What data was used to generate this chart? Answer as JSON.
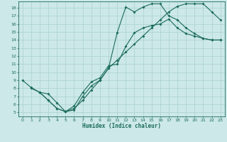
{
  "xlabel": "Humidex (Indice chaleur)",
  "bg_color": "#cce8e8",
  "grid_color": "#aad0d0",
  "line_color": "#1a6b5a",
  "xlim": [
    -0.5,
    23.5
  ],
  "ylim": [
    4.5,
    18.8
  ],
  "xticks": [
    0,
    1,
    2,
    3,
    4,
    5,
    6,
    7,
    8,
    9,
    10,
    11,
    12,
    13,
    14,
    15,
    16,
    17,
    18,
    19,
    20,
    21,
    22,
    23
  ],
  "yticks": [
    5,
    6,
    7,
    8,
    9,
    10,
    11,
    12,
    13,
    14,
    15,
    16,
    17,
    18
  ],
  "line1_x": [
    0,
    1,
    2,
    3,
    4,
    5,
    6,
    7,
    8,
    9,
    10,
    11,
    12,
    13,
    14,
    15,
    16,
    17,
    18,
    19,
    20,
    21,
    22,
    23
  ],
  "line1_y": [
    9.0,
    8.1,
    7.5,
    7.3,
    6.2,
    5.1,
    5.8,
    7.5,
    8.8,
    9.3,
    10.8,
    11.0,
    13.2,
    14.9,
    15.5,
    15.8,
    16.0,
    16.6,
    15.5,
    14.8,
    14.5,
    14.2,
    14.0,
    14.0
  ],
  "line2_x": [
    1,
    2,
    3,
    4,
    5,
    6,
    7,
    8,
    9,
    10,
    11,
    12,
    13,
    14,
    15,
    16,
    17,
    18,
    19,
    20,
    21,
    22,
    23
  ],
  "line2_y": [
    8.0,
    7.5,
    6.5,
    5.5,
    5.1,
    5.3,
    7.0,
    8.3,
    9.0,
    10.5,
    14.9,
    18.1,
    17.5,
    18.1,
    18.5,
    18.5,
    17.0,
    16.5,
    15.5,
    14.8,
    14.2,
    14.0,
    14.0
  ],
  "line3_x": [
    2,
    3,
    4,
    5,
    6,
    7,
    8,
    9,
    10,
    11,
    12,
    13,
    14,
    15,
    16,
    17,
    18,
    19,
    20,
    21,
    22,
    23
  ],
  "line3_y": [
    7.5,
    6.5,
    5.5,
    5.1,
    5.5,
    6.5,
    7.8,
    9.0,
    10.5,
    11.5,
    12.5,
    13.5,
    14.5,
    15.5,
    16.5,
    17.5,
    18.2,
    18.5,
    18.5,
    18.5,
    17.5,
    16.5
  ]
}
